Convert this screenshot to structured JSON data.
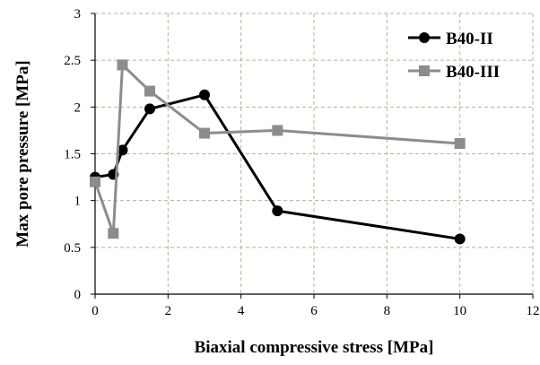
{
  "chart_data": {
    "type": "line",
    "title": "",
    "xlabel": "Biaxial compressive stress [MPa]",
    "ylabel": "Max pore pressure [MPa]",
    "xlim": [
      0,
      12
    ],
    "ylim": [
      0,
      3
    ],
    "xticks": [
      0,
      2,
      4,
      6,
      8,
      10,
      12
    ],
    "yticks": [
      0,
      0.5,
      1,
      1.5,
      2,
      2.5,
      3
    ],
    "xtick_labels": [
      "0",
      "2",
      "4",
      "6",
      "8",
      "10",
      "12"
    ],
    "ytick_labels": [
      "0",
      "0.5",
      "1",
      "1.5",
      "2",
      "2.5",
      "3"
    ],
    "grid": true,
    "legend_position": "top-right",
    "series": [
      {
        "name": "B40-II",
        "color": "#000000",
        "marker": "circle",
        "x": [
          0,
          0.5,
          0.75,
          1.5,
          3,
          5,
          10
        ],
        "y": [
          1.25,
          1.28,
          1.54,
          1.98,
          2.13,
          0.89,
          0.59
        ]
      },
      {
        "name": "B40-III",
        "color": "#8c8c8c",
        "marker": "square",
        "x": [
          0,
          0.5,
          0.75,
          1.5,
          3,
          5,
          10
        ],
        "y": [
          1.2,
          0.65,
          2.45,
          2.17,
          1.72,
          1.75,
          1.61
        ]
      }
    ]
  }
}
